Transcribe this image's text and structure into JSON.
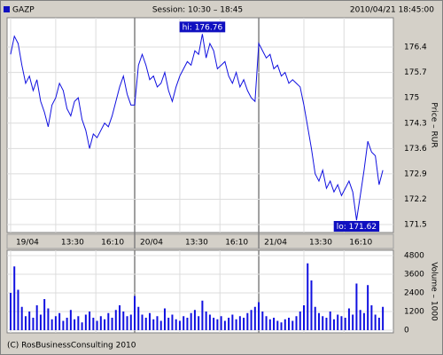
{
  "header": {
    "symbol": "GAZP",
    "session": "Session: 10:30 – 18:45",
    "timestamp": "2010/04/21 18:45:00"
  },
  "footer": "(C) RosBusinessConsulting 2010",
  "chart_data": [
    {
      "type": "line",
      "y_label": "Price – RUR",
      "grid": true,
      "color": "#1010e0",
      "x": [
        0,
        15,
        30,
        45,
        60,
        75,
        90,
        105,
        120,
        135,
        150,
        165,
        180,
        195,
        210,
        225,
        240,
        255,
        270,
        285,
        300,
        315,
        330,
        345,
        360,
        375,
        390,
        405,
        420,
        435,
        450,
        465,
        480,
        495,
        510,
        525,
        540,
        555,
        570,
        585,
        600,
        615,
        630,
        645,
        660,
        675,
        690,
        705,
        720,
        735,
        750,
        765,
        780,
        795,
        810,
        825,
        840,
        855,
        870,
        885,
        900,
        915,
        930,
        945,
        960,
        975,
        990,
        1005,
        1020,
        1035,
        1050,
        1065,
        1080,
        1095,
        1110,
        1125,
        1140,
        1155,
        1170,
        1185,
        1200,
        1215,
        1230,
        1245,
        1260,
        1275,
        1290,
        1305,
        1320,
        1335,
        1350,
        1365,
        1380,
        1395,
        1410,
        1425,
        1440,
        1455,
        1470,
        1485
      ],
      "values": [
        176.2,
        176.7,
        176.5,
        175.9,
        175.4,
        175.6,
        175.2,
        175.5,
        174.9,
        174.6,
        174.2,
        174.8,
        175.0,
        175.4,
        175.2,
        174.7,
        174.5,
        174.9,
        175.0,
        174.4,
        174.1,
        173.6,
        174.0,
        173.9,
        174.1,
        174.3,
        174.2,
        174.5,
        174.9,
        175.3,
        175.6,
        175.1,
        174.8,
        174.8,
        175.9,
        176.2,
        175.9,
        175.5,
        175.6,
        175.3,
        175.4,
        175.7,
        175.2,
        174.9,
        175.3,
        175.6,
        175.8,
        176.0,
        175.9,
        176.3,
        176.2,
        176.76,
        176.1,
        176.5,
        176.3,
        175.8,
        175.9,
        176.0,
        175.6,
        175.4,
        175.7,
        175.3,
        175.5,
        175.2,
        175.0,
        174.9,
        176.5,
        176.3,
        176.1,
        176.2,
        175.8,
        175.9,
        175.6,
        175.7,
        175.4,
        175.5,
        175.4,
        175.3,
        174.8,
        174.2,
        173.6,
        172.9,
        172.7,
        173.0,
        172.5,
        172.7,
        172.4,
        172.6,
        172.3,
        172.5,
        172.7,
        172.4,
        171.62,
        172.3,
        173.0,
        173.8,
        173.5,
        173.4,
        172.6,
        173.0
      ],
      "xlim": [
        -14,
        1527
      ],
      "ylim": [
        171.28,
        177.21
      ],
      "yticks": [
        176.4,
        175.7,
        175,
        174.3,
        173.6,
        172.9,
        172.2,
        171.5
      ],
      "xticks": [
        {
          "value": 0,
          "label": "19/04"
        },
        {
          "value": 180,
          "label": "13:30"
        },
        {
          "value": 340,
          "label": "16:10"
        },
        {
          "value": 495,
          "label": "20/04"
        },
        {
          "value": 675,
          "label": "13:30"
        },
        {
          "value": 835,
          "label": "16:10"
        },
        {
          "value": 990,
          "label": "21/04"
        },
        {
          "value": 1170,
          "label": "13:30"
        },
        {
          "value": 1330,
          "label": "16:10"
        }
      ],
      "annotations": [
        {
          "label": "hi: 176.76",
          "x": 765,
          "y": 176.76,
          "position": "above"
        },
        {
          "label": "lo: 171.62",
          "x": 1380,
          "y": 171.62,
          "position": "below"
        }
      ]
    },
    {
      "type": "bar",
      "y_label": "Volume – 1000",
      "grid": true,
      "color": "#1010e0",
      "x": [
        0,
        15,
        30,
        45,
        60,
        75,
        90,
        105,
        120,
        135,
        150,
        165,
        180,
        195,
        210,
        225,
        240,
        255,
        270,
        285,
        300,
        315,
        330,
        345,
        360,
        375,
        390,
        405,
        420,
        435,
        450,
        465,
        480,
        495,
        510,
        525,
        540,
        555,
        570,
        585,
        600,
        615,
        630,
        645,
        660,
        675,
        690,
        705,
        720,
        735,
        750,
        765,
        780,
        795,
        810,
        825,
        840,
        855,
        870,
        885,
        900,
        915,
        930,
        945,
        960,
        975,
        990,
        1005,
        1020,
        1035,
        1050,
        1065,
        1080,
        1095,
        1110,
        1125,
        1140,
        1155,
        1170,
        1185,
        1200,
        1215,
        1230,
        1245,
        1260,
        1275,
        1290,
        1305,
        1320,
        1335,
        1350,
        1365,
        1380,
        1395,
        1410,
        1425,
        1440,
        1455,
        1470,
        1485
      ],
      "values": [
        2400,
        4100,
        2600,
        1500,
        900,
        1200,
        800,
        1600,
        1000,
        2000,
        1400,
        700,
        900,
        1100,
        600,
        800,
        1300,
        700,
        900,
        500,
        1000,
        1200,
        800,
        600,
        900,
        700,
        1100,
        800,
        1300,
        1600,
        1200,
        900,
        1000,
        2200,
        1500,
        1000,
        800,
        1100,
        700,
        900,
        600,
        1400,
        800,
        1000,
        700,
        600,
        900,
        800,
        1100,
        1300,
        900,
        1900,
        1200,
        1000,
        800,
        700,
        900,
        600,
        800,
        1000,
        700,
        900,
        800,
        1100,
        1300,
        1500,
        1800,
        1200,
        900,
        700,
        800,
        600,
        500,
        700,
        800,
        600,
        900,
        1200,
        1600,
        4300,
        3200,
        1500,
        1100,
        900,
        800,
        1200,
        700,
        1000,
        900,
        800,
        1400,
        1000,
        3000,
        1300,
        1100,
        2900,
        1600,
        1000,
        800,
        1500
      ],
      "xlim": [
        -14,
        1527
      ],
      "ylim": [
        -170,
        5140
      ],
      "yticks": [
        4800,
        3600,
        2400,
        1200,
        0
      ]
    }
  ]
}
